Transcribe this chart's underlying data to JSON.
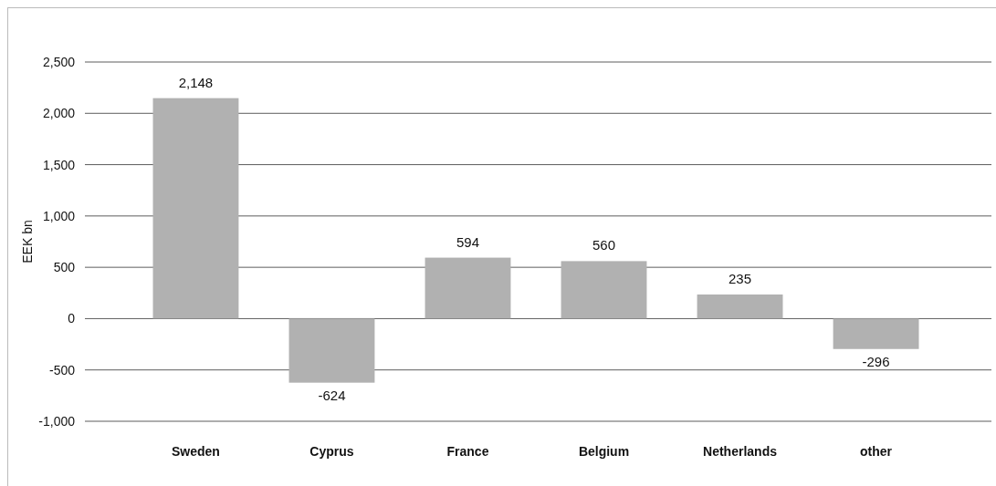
{
  "chart_data": {
    "type": "bar",
    "ylabel": "EEK bn",
    "categories": [
      "Sweden",
      "Cyprus",
      "France",
      "Belgium",
      "Netherlands",
      "other"
    ],
    "values": [
      2148,
      -624,
      594,
      560,
      235,
      -296
    ],
    "color": "#b1b1b1",
    "ylim": [
      -1000,
      2500
    ],
    "yticks": [
      {
        "value": -1000,
        "label": "-1,000"
      },
      {
        "value": -500,
        "label": "-500"
      },
      0,
      500,
      {
        "value": 1000,
        "label": "1,000"
      },
      {
        "value": 1500,
        "label": "1,500"
      },
      {
        "value": 2000,
        "label": "2,000"
      },
      {
        "value": 2500,
        "label": "2,500"
      }
    ],
    "value_labels": [
      "2,148",
      "-624",
      "594",
      "560",
      "235",
      "-296"
    ],
    "grid": "y"
  }
}
